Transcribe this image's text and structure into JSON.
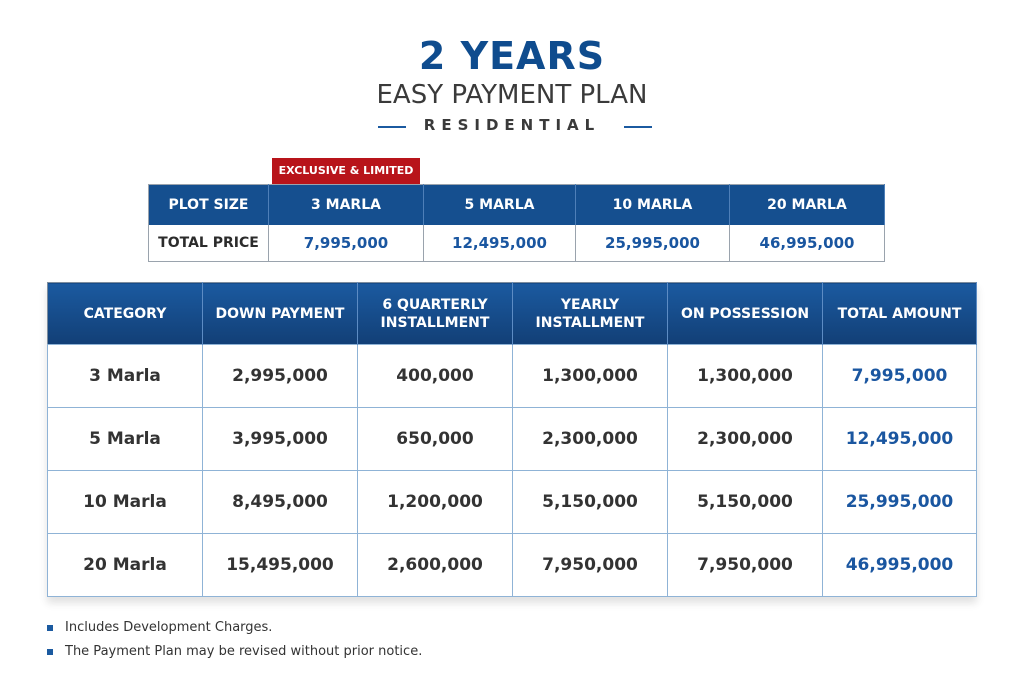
{
  "header": {
    "title": "2 YEARS",
    "subtitle": "EASY PAYMENT PLAN",
    "tagline": "RESIDENTIAL"
  },
  "badge": "EXCLUSIVE & LIMITED",
  "price_table": {
    "header": [
      "PLOT SIZE",
      "3 MARLA",
      "5 MARLA",
      "10 MARLA",
      "20 MARLA"
    ],
    "rows": [
      [
        "TOTAL PRICE",
        "7,995,000",
        "12,495,000",
        "25,995,000",
        "46,995,000"
      ]
    ]
  },
  "plan_table": {
    "header": [
      "CATEGORY",
      "DOWN PAYMENT",
      "6 QUARTERLY INSTALLMENT",
      "YEARLY INSTALLMENT",
      "ON POSSESSION",
      "TOTAL AMOUNT"
    ],
    "rows": [
      [
        "3 Marla",
        "2,995,000",
        "400,000",
        "1,300,000",
        "1,300,000",
        "7,995,000"
      ],
      [
        "5 Marla",
        "3,995,000",
        "650,000",
        "2,300,000",
        "2,300,000",
        "12,495,000"
      ],
      [
        "10 Marla",
        "8,495,000",
        "1,200,000",
        "5,150,000",
        "5,150,000",
        "25,995,000"
      ],
      [
        "20 Marla",
        "15,495,000",
        "2,600,000",
        "7,950,000",
        "7,950,000",
        "46,995,000"
      ]
    ]
  },
  "notes": [
    "Includes Development Charges.",
    "The Payment Plan may be revised without prior notice."
  ]
}
